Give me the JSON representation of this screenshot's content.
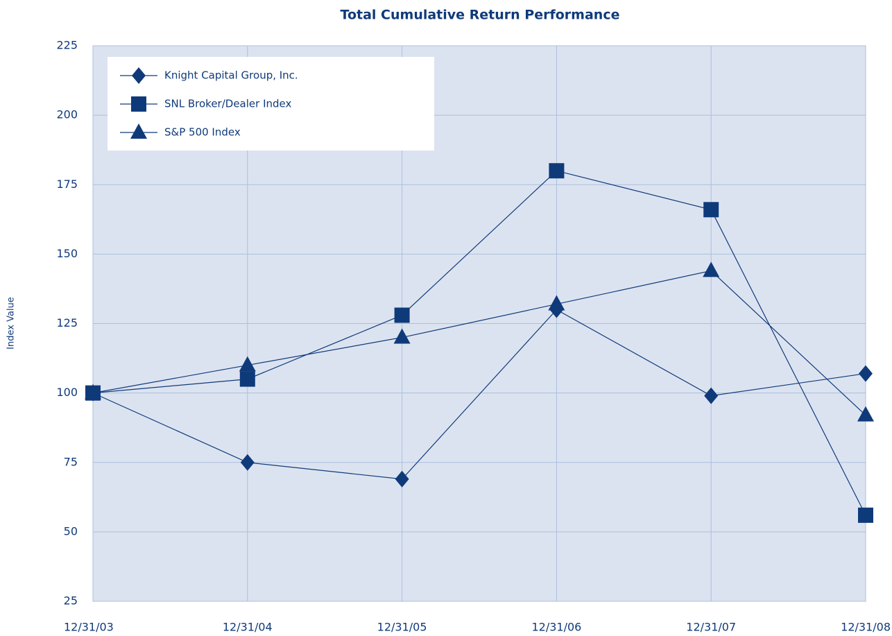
{
  "chart_data": {
    "type": "line",
    "title": "Total Cumulative Return Performance",
    "y_label": "Index Value",
    "categories": [
      "12/31/03",
      "12/31/04",
      "12/31/05",
      "12/31/06",
      "12/31/07",
      "12/31/08"
    ],
    "series": [
      {
        "name": "Knight Capital Group, Inc.",
        "color": "#0f3a7a",
        "marker": "diamond",
        "values": [
          100,
          75,
          69,
          130,
          99,
          107
        ]
      },
      {
        "name": "SNL Broker/Dealer Index",
        "color": "#0f3a7a",
        "marker": "square",
        "values": [
          100,
          105,
          128,
          180,
          166,
          56
        ]
      },
      {
        "name": "S&P 500 Index",
        "color": "#0f3a7a",
        "marker": "triangle",
        "values": [
          100,
          110,
          120,
          132,
          144,
          92
        ]
      }
    ],
    "ylim": [
      25,
      225
    ],
    "yticks": [
      25,
      50,
      75,
      100,
      125,
      150,
      175,
      200,
      225
    ],
    "grid": true,
    "legend": "upper left"
  }
}
